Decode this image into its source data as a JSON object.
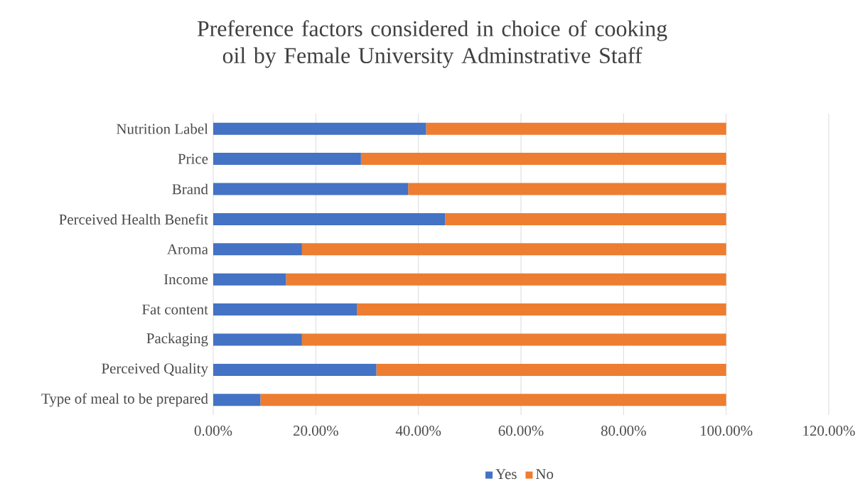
{
  "chart_data": {
    "type": "bar",
    "orientation": "horizontal",
    "stacked": true,
    "title": "Preference factors considered in choice of cooking oil by Female University Adminstrative Staff",
    "categories": [
      "Nutrition Label",
      "Price",
      "Brand",
      "Perceived Health Benefit",
      "Aroma",
      "Income",
      "Fat content",
      "Packaging",
      "Perceived Quality",
      "Type of meal to be prepared"
    ],
    "series": [
      {
        "name": "Yes",
        "color": "#4472c4",
        "values": [
          41.5,
          28.8,
          38.0,
          45.2,
          17.3,
          14.2,
          28.0,
          17.3,
          31.8,
          9.2
        ]
      },
      {
        "name": "No",
        "color": "#ed7d31",
        "values": [
          58.5,
          71.2,
          62.0,
          54.8,
          82.7,
          85.8,
          72.0,
          82.7,
          68.2,
          90.8
        ]
      }
    ],
    "xlim": [
      0,
      120
    ],
    "xticks": [
      {
        "value": 0,
        "label": "0.00%"
      },
      {
        "value": 20,
        "label": "20.00%"
      },
      {
        "value": 40,
        "label": "40.00%"
      },
      {
        "value": 60,
        "label": "60.00%"
      },
      {
        "value": 80,
        "label": "80.00%"
      },
      {
        "value": 100,
        "label": "100.00%"
      },
      {
        "value": 120,
        "label": "120.00%"
      }
    ],
    "grid": "x",
    "legend": "bottom"
  }
}
